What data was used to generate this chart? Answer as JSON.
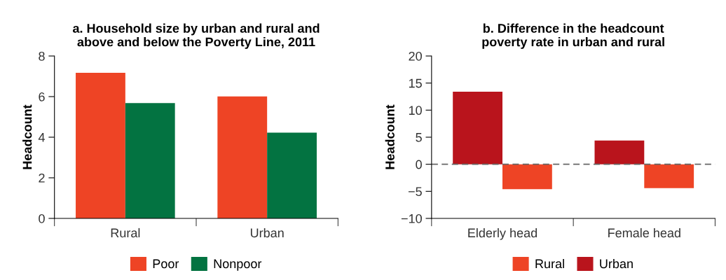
{
  "chart_data": [
    {
      "type": "bar",
      "title": "a. Household size by urban and rural and\nabove and below the Poverty Line, 2011",
      "ylabel": "Headcount",
      "categories": [
        "Rural",
        "Urban"
      ],
      "series": [
        {
          "name": "Poor",
          "color": "#ee4425",
          "values": [
            7.17,
            6.01
          ]
        },
        {
          "name": "Nonpoor",
          "color": "#037341",
          "values": [
            5.68,
            4.22
          ]
        }
      ],
      "ylim": [
        0,
        8
      ],
      "yticks": [
        0,
        2,
        4,
        6,
        8
      ],
      "grid": false,
      "legend": "bottom"
    },
    {
      "type": "bar",
      "title": "b. Difference in the headcount\npoverty rate in urban and rural",
      "ylabel": "Headcount",
      "categories": [
        "Elderly head",
        "Female head"
      ],
      "series": [
        {
          "name": "Urban",
          "color": "#b9141c",
          "values": [
            13.4,
            4.4
          ]
        },
        {
          "name": "Rural",
          "color": "#ee4425",
          "values": [
            -4.6,
            -4.4
          ]
        }
      ],
      "ylim": [
        -10,
        20
      ],
      "yticks": [
        {
          "value": -10,
          "label": "−10"
        },
        {
          "value": -5,
          "label": "−5"
        },
        0,
        5,
        10,
        15,
        20
      ],
      "grid": false,
      "legend": "bottom",
      "ref_lines": [
        {
          "axis": "y",
          "value": 0,
          "color": "#666666",
          "line_style": "dashed"
        }
      ]
    }
  ]
}
